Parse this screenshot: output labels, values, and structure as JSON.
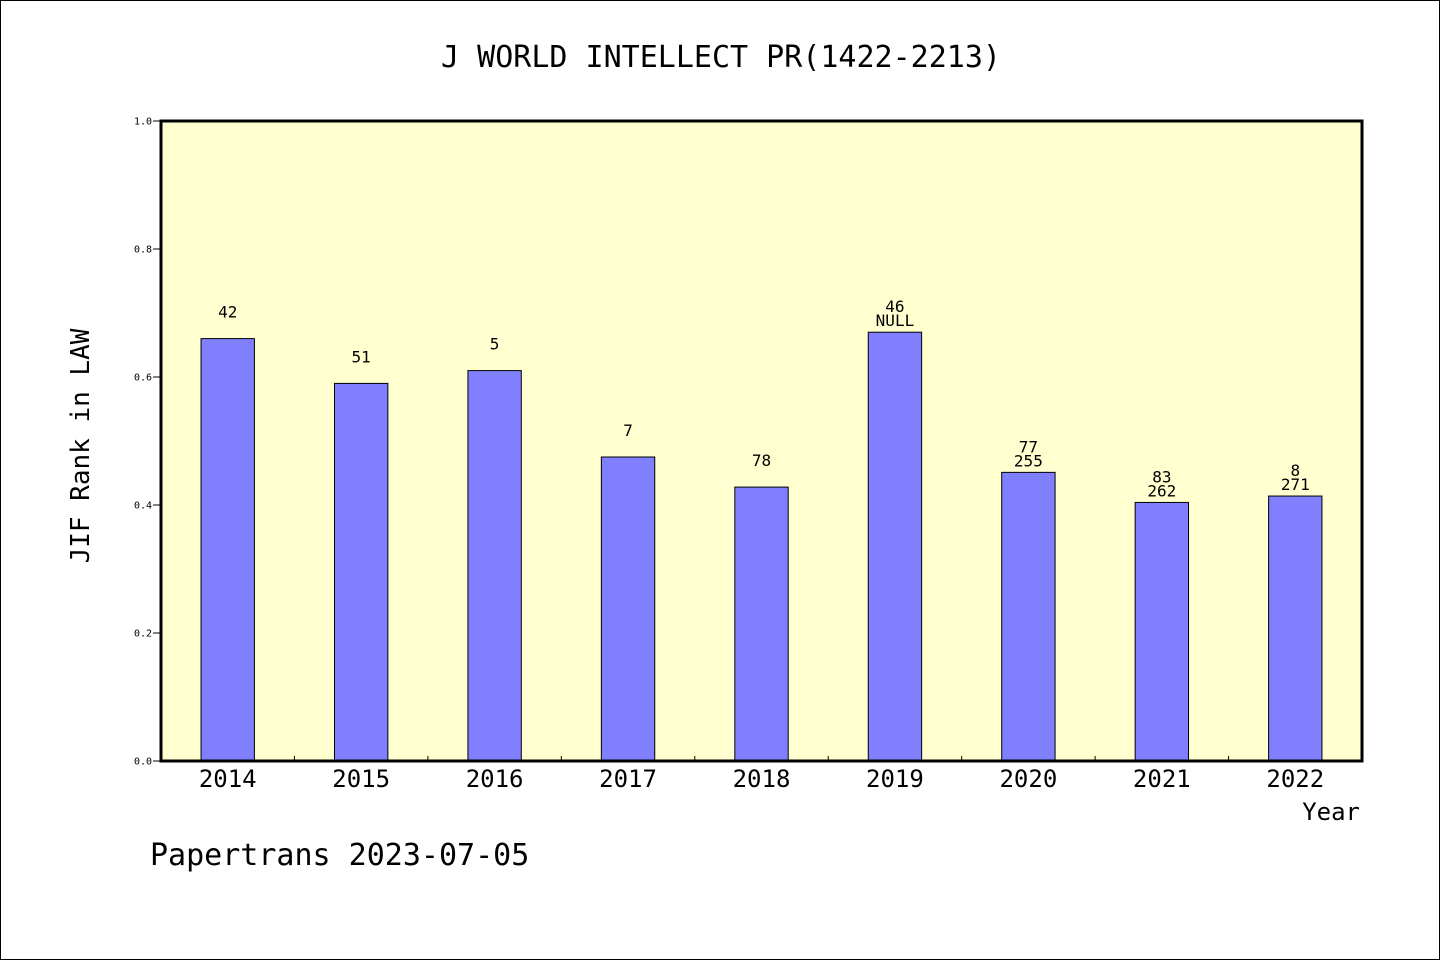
{
  "chart_data": {
    "type": "bar",
    "title": "J WORLD INTELLECT PR(1422-2213)",
    "xlabel": "Year",
    "ylabel": "JIF Rank in LAW",
    "ylim": [
      0,
      1.0
    ],
    "yticks": [
      "0.0",
      "0.2",
      "0.4",
      "0.6",
      "0.8",
      "1.0"
    ],
    "grid": false,
    "categories": [
      "2014",
      "2015",
      "2016",
      "2017",
      "2018",
      "2019",
      "2020",
      "2021",
      "2022"
    ],
    "values": [
      0.66,
      0.59,
      0.61,
      0.475,
      0.428,
      0.67,
      0.451,
      0.404,
      0.414
    ],
    "annotations": [
      [
        "42"
      ],
      [
        "51"
      ],
      [
        "5"
      ],
      [
        "7"
      ],
      [
        "78"
      ],
      [
        "46",
        "NULL"
      ],
      [
        "77",
        "255"
      ],
      [
        "83",
        "262"
      ],
      [
        "8",
        "271"
      ]
    ],
    "colors": {
      "bar": "#8080ff",
      "plot_background": "#ffffd0",
      "axis": "#000000"
    }
  },
  "footer": {
    "text": "Papertrans 2023-07-05"
  }
}
